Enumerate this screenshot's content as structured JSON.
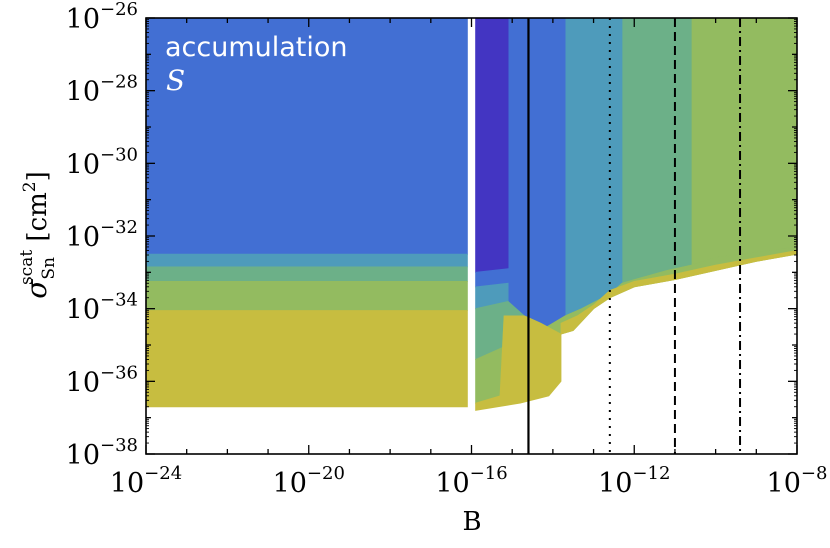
{
  "chart_data": {
    "type": "area",
    "title": "",
    "xlabel": "B",
    "ylabel": {
      "symbol": "σ",
      "superscript": "scat",
      "subscript": "Sn",
      "unit_open": " [cm",
      "unit_power": "2",
      "unit_close": "]"
    },
    "x_scale": "log",
    "y_scale": "log",
    "xlim": [
      "1e-24",
      "1e-8"
    ],
    "ylim": [
      "1e-38",
      "1e-26"
    ],
    "x_ticks": [
      {
        "base": "10",
        "exp": "−24"
      },
      {
        "base": "10",
        "exp": "−20"
      },
      {
        "base": "10",
        "exp": "−16"
      },
      {
        "base": "10",
        "exp": "−12"
      },
      {
        "base": "10",
        "exp": "−8"
      }
    ],
    "y_ticks": [
      {
        "base": "10",
        "exp": "−38"
      },
      {
        "base": "10",
        "exp": "−36"
      },
      {
        "base": "10",
        "exp": "−34"
      },
      {
        "base": "10",
        "exp": "−32"
      },
      {
        "base": "10",
        "exp": "−30"
      },
      {
        "base": "10",
        "exp": "−28"
      },
      {
        "base": "10",
        "exp": "−26"
      }
    ],
    "annotation": {
      "line1": "accumulation",
      "line2": "S"
    },
    "colors": {
      "level1": "#4335c2",
      "level2": "#426fd3",
      "level3": "#4e9bbb",
      "level4": "#6cb088",
      "level5": "#93bb60",
      "level6": "#c7bd40",
      "gap": "#ffffff"
    },
    "regions": [
      {
        "level": "level2",
        "points": [
          [
            -24,
            -26
          ],
          [
            -16.1,
            -26
          ],
          [
            -16.1,
            -32.5
          ],
          [
            -24,
            -32.5
          ]
        ]
      },
      {
        "level": "level3",
        "points": [
          [
            -24,
            -32.5
          ],
          [
            -16.1,
            -32.5
          ],
          [
            -16.1,
            -32.85
          ],
          [
            -24,
            -32.85
          ]
        ]
      },
      {
        "level": "level4",
        "points": [
          [
            -24,
            -32.85
          ],
          [
            -16.1,
            -32.85
          ],
          [
            -16.1,
            -33.25
          ],
          [
            -24,
            -33.25
          ]
        ]
      },
      {
        "level": "level5",
        "points": [
          [
            -24,
            -33.25
          ],
          [
            -16.1,
            -33.25
          ],
          [
            -16.1,
            -34.05
          ],
          [
            -24,
            -34.05
          ]
        ]
      },
      {
        "level": "level6",
        "points": [
          [
            -24,
            -34.05
          ],
          [
            -16.1,
            -34.05
          ],
          [
            -16.1,
            -36.7
          ],
          [
            -24,
            -36.7
          ]
        ]
      },
      {
        "level": "level5",
        "points": [
          [
            -10.6,
            -26
          ],
          [
            -8,
            -26
          ],
          [
            -8,
            -32.3
          ],
          [
            -9,
            -32.45
          ],
          [
            -10,
            -32.6
          ],
          [
            -10.6,
            -32.8
          ]
        ]
      },
      {
        "level": "level4",
        "points": [
          [
            -12.3,
            -26
          ],
          [
            -10.6,
            -26
          ],
          [
            -10.6,
            -32.8
          ],
          [
            -11.2,
            -32.95
          ],
          [
            -12,
            -33.2
          ],
          [
            -12.3,
            -33.3
          ]
        ]
      },
      {
        "level": "level3",
        "points": [
          [
            -13.7,
            -26
          ],
          [
            -12.3,
            -26
          ],
          [
            -12.3,
            -33.3
          ],
          [
            -12.6,
            -33.6
          ],
          [
            -13.3,
            -34.0
          ],
          [
            -13.7,
            -34.2
          ]
        ]
      },
      {
        "level": "level2",
        "points": [
          [
            -15.1,
            -26
          ],
          [
            -13.7,
            -26
          ],
          [
            -13.7,
            -34.2
          ],
          [
            -14.3,
            -34.6
          ],
          [
            -15.1,
            -35.2
          ]
        ]
      },
      {
        "level": "level1",
        "points": [
          [
            -15.9,
            -26
          ],
          [
            -15.1,
            -26
          ],
          [
            -15.1,
            -32.9
          ],
          [
            -15.9,
            -33.0
          ]
        ]
      },
      {
        "level": "level2",
        "points": [
          [
            -15.9,
            -33.0
          ],
          [
            -15.1,
            -32.9
          ],
          [
            -15.1,
            -33.3
          ],
          [
            -15.9,
            -33.4
          ]
        ]
      },
      {
        "level": "level3",
        "points": [
          [
            -15.9,
            -33.4
          ],
          [
            -15.1,
            -33.3
          ],
          [
            -15.1,
            -33.8
          ],
          [
            -15.9,
            -34.0
          ]
        ]
      },
      {
        "level": "level4",
        "points": [
          [
            -15.9,
            -34.0
          ],
          [
            -15.1,
            -33.8
          ],
          [
            -14.3,
            -34.6
          ],
          [
            -15.1,
            -35.2
          ],
          [
            -15.9,
            -35.4
          ]
        ]
      },
      {
        "level": "level5",
        "points": [
          [
            -15.9,
            -35.4
          ],
          [
            -14.3,
            -34.6
          ],
          [
            -13.7,
            -34.2
          ],
          [
            -13.3,
            -34.0
          ],
          [
            -12.6,
            -33.6
          ],
          [
            -12.3,
            -33.3
          ],
          [
            -12.0,
            -33.2
          ],
          [
            -11.2,
            -32.95
          ],
          [
            -10.6,
            -32.8
          ],
          [
            -10.0,
            -32.6
          ],
          [
            -9.0,
            -32.45
          ],
          [
            -8.0,
            -32.3
          ],
          [
            -8.0,
            -32.5
          ],
          [
            -9.0,
            -32.7
          ],
          [
            -10.0,
            -32.95
          ],
          [
            -11.0,
            -33.2
          ],
          [
            -12.0,
            -33.4
          ],
          [
            -12.6,
            -33.7
          ],
          [
            -13.0,
            -34.0
          ],
          [
            -13.5,
            -34.6
          ],
          [
            -13.8,
            -34.7
          ],
          [
            -14.3,
            -34.4
          ],
          [
            -14.7,
            -34.2
          ],
          [
            -15.2,
            -34.2
          ],
          [
            -15.3,
            -36.4
          ],
          [
            -15.9,
            -36.6
          ]
        ]
      },
      {
        "level": "level6",
        "points": [
          [
            -15.9,
            -36.6
          ],
          [
            -15.3,
            -36.4
          ],
          [
            -15.2,
            -34.2
          ],
          [
            -14.7,
            -34.2
          ],
          [
            -14.3,
            -34.4
          ],
          [
            -13.8,
            -34.7
          ],
          [
            -13.5,
            -34.6
          ],
          [
            -13.0,
            -34.0
          ],
          [
            -12.6,
            -33.7
          ],
          [
            -12.0,
            -33.4
          ],
          [
            -11.0,
            -33.2
          ],
          [
            -10.0,
            -32.95
          ],
          [
            -9.0,
            -32.7
          ],
          [
            -8.0,
            -32.5
          ],
          [
            -8.0,
            -32.4
          ],
          [
            -9.0,
            -32.6
          ],
          [
            -10.0,
            -32.8
          ],
          [
            -11.0,
            -33.05
          ],
          [
            -12.0,
            -33.25
          ],
          [
            -12.6,
            -33.5
          ],
          [
            -13.0,
            -33.9
          ],
          [
            -13.4,
            -34.2
          ],
          [
            -13.8,
            -34.4
          ],
          [
            -13.8,
            -36.0
          ],
          [
            -14.1,
            -36.4
          ],
          [
            -14.8,
            -36.6
          ],
          [
            -15.9,
            -36.8
          ]
        ]
      }
    ],
    "vertical_lines": [
      {
        "x": -14.6,
        "style": "solid"
      },
      {
        "x": -12.6,
        "style": "dotted"
      },
      {
        "x": -11.0,
        "style": "dashed"
      },
      {
        "x": -9.4,
        "style": "dashdot"
      }
    ]
  }
}
